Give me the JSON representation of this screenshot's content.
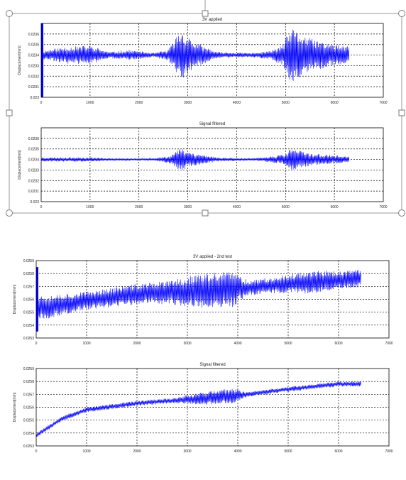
{
  "charts": [
    {
      "type": "line",
      "title": "3V applied",
      "ylabel": "Displacement[mm]",
      "xlabel": "",
      "xlim": [
        0,
        7000
      ],
      "ylim": [
        0.023,
        0.0237
      ],
      "x_ticks": [
        0,
        1000,
        2000,
        3000,
        4000,
        5000,
        6000,
        7000
      ],
      "y_ticks": [
        0.023,
        0.0231,
        0.0232,
        0.0233,
        0.0234,
        0.0235,
        0.0236
      ],
      "y_tick_labels": [
        "0.023",
        "0.0231",
        "0.0232",
        "0.0233",
        "0.0234",
        "0.0235",
        "0.0236"
      ],
      "grid": true,
      "color": "#0000ff",
      "data_end": 6300,
      "initial_spike": [
        0.023,
        0.0237
      ],
      "trend": [
        [
          0,
          0.0234
        ],
        [
          6300,
          0.0234
        ]
      ],
      "envelope": [
        [
          0,
          4e-05
        ],
        [
          500,
          8e-05
        ],
        [
          1000,
          9e-05
        ],
        [
          1400,
          3e-05
        ],
        [
          1800,
          5e-05
        ],
        [
          2300,
          2e-05
        ],
        [
          2600,
          5e-05
        ],
        [
          2850,
          0.00024
        ],
        [
          3150,
          0.00012
        ],
        [
          3600,
          3e-05
        ],
        [
          4300,
          2e-05
        ],
        [
          4700,
          4e-05
        ],
        [
          4950,
          0.0001
        ],
        [
          5100,
          0.00026
        ],
        [
          5500,
          0.00016
        ],
        [
          6000,
          0.0001
        ],
        [
          6300,
          8e-05
        ]
      ]
    },
    {
      "type": "line",
      "title": "Signal filtered",
      "ylabel": "Displacement[mm]",
      "xlabel": "",
      "xlim": [
        0,
        7000
      ],
      "ylim": [
        0.023,
        0.0237
      ],
      "x_ticks": [
        0,
        1000,
        2000,
        3000,
        4000,
        5000,
        6000,
        7000
      ],
      "y_ticks": [
        0.023,
        0.0231,
        0.0232,
        0.0233,
        0.0234,
        0.0235,
        0.0236
      ],
      "y_tick_labels": [
        "0.023",
        "0.0231",
        "0.0232",
        "0.0233",
        "0.0234",
        "0.0235",
        "0.0236"
      ],
      "grid": true,
      "color": "#0000ff",
      "data_end": 6300,
      "initial_spike": null,
      "trend": [
        [
          0,
          0.0234
        ],
        [
          6300,
          0.0234
        ]
      ],
      "envelope": [
        [
          0,
          2e-05
        ],
        [
          500,
          2e-05
        ],
        [
          1000,
          2e-05
        ],
        [
          1500,
          1e-05
        ],
        [
          2300,
          1e-05
        ],
        [
          2650,
          4e-05
        ],
        [
          2850,
          0.00011
        ],
        [
          3150,
          6e-05
        ],
        [
          3600,
          2e-05
        ],
        [
          4300,
          1e-05
        ],
        [
          4700,
          3e-05
        ],
        [
          5000,
          5e-05
        ],
        [
          5100,
          0.00011
        ],
        [
          5500,
          6e-05
        ],
        [
          6000,
          4e-05
        ],
        [
          6300,
          3e-05
        ]
      ]
    },
    {
      "type": "line",
      "title": "3V applied - 2nd test",
      "ylabel": "Displacement[mm]",
      "xlabel": "",
      "xlim": [
        0,
        7000
      ],
      "ylim": [
        0.0253,
        0.0259
      ],
      "x_ticks": [
        0,
        1000,
        2000,
        3000,
        4000,
        5000,
        6000,
        7000
      ],
      "y_ticks": [
        0.0253,
        0.0254,
        0.0255,
        0.0256,
        0.0257,
        0.0258,
        0.0259
      ],
      "y_tick_labels": [
        "0.0253",
        "0.0254",
        "0.0255",
        "0.0256",
        "0.0257",
        "0.0258",
        "0.0259"
      ],
      "grid": true,
      "color": "#0000ff",
      "data_end": 6450,
      "initial_spike": [
        0.02535,
        0.02585
      ],
      "trend": [
        [
          0,
          0.02553
        ],
        [
          1000,
          0.02559
        ],
        [
          2000,
          0.02564
        ],
        [
          3000,
          0.02566
        ],
        [
          4000,
          0.02568
        ],
        [
          5000,
          0.02572
        ],
        [
          6000,
          0.02575
        ],
        [
          6450,
          0.02576
        ]
      ],
      "envelope": [
        [
          0,
          0.0001
        ],
        [
          1000,
          7e-05
        ],
        [
          2000,
          8e-05
        ],
        [
          2600,
          9e-05
        ],
        [
          3200,
          0.00013
        ],
        [
          3900,
          0.00014
        ],
        [
          4200,
          6e-05
        ],
        [
          5000,
          7e-05
        ],
        [
          5400,
          9e-05
        ],
        [
          6000,
          7e-05
        ],
        [
          6450,
          7e-05
        ]
      ]
    },
    {
      "type": "line",
      "title": "Signal filtered",
      "ylabel": "Displacement[mm]",
      "xlabel": "",
      "xlim": [
        0,
        7000
      ],
      "ylim": [
        0.0253,
        0.0259
      ],
      "x_ticks": [
        0,
        1000,
        2000,
        3000,
        4000,
        5000,
        6000,
        7000
      ],
      "y_ticks": [
        0.0253,
        0.0254,
        0.0255,
        0.0256,
        0.0257,
        0.0258,
        0.0259
      ],
      "y_tick_labels": [
        "0.0253",
        "0.0254",
        "0.0255",
        "0.0256",
        "0.0257",
        "0.0258",
        "0.0259"
      ],
      "grid": true,
      "color": "#0000ff",
      "data_end": 6450,
      "initial_spike": null,
      "trend": [
        [
          0,
          0.02538
        ],
        [
          500,
          0.02551
        ],
        [
          1000,
          0.02558
        ],
        [
          2000,
          0.02563
        ],
        [
          3000,
          0.02566
        ],
        [
          4000,
          0.02569
        ],
        [
          5000,
          0.02574
        ],
        [
          6000,
          0.02578
        ],
        [
          6450,
          0.02578
        ]
      ],
      "envelope": [
        [
          0,
          2e-05
        ],
        [
          1000,
          2e-05
        ],
        [
          2000,
          2e-05
        ],
        [
          2700,
          2e-05
        ],
        [
          3300,
          5e-05
        ],
        [
          3900,
          6e-05
        ],
        [
          4200,
          2e-05
        ],
        [
          5000,
          2e-05
        ],
        [
          6000,
          2e-05
        ],
        [
          6450,
          2e-05
        ]
      ]
    }
  ]
}
